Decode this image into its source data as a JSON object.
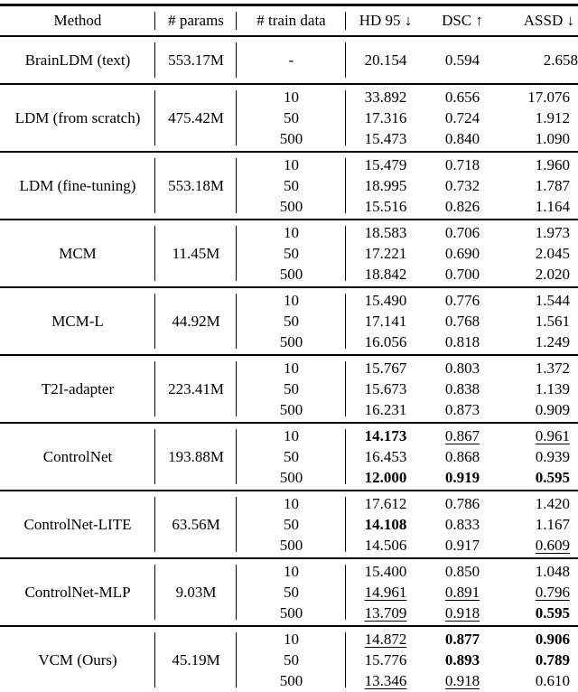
{
  "page": {
    "background": "#ffffff",
    "text_color": "#000000"
  },
  "table": {
    "headers": [
      "Method",
      "# params",
      "# train data",
      "HD 95 ↓",
      "DSC ↑",
      "ASSD ↓"
    ],
    "groups": [
      {
        "method": "BrainLDM (text)",
        "params": "553.17M",
        "rows": [
          {
            "train": "-",
            "hd95": {
              "v": "20.154",
              "s": ""
            },
            "dsc": {
              "v": "0.594",
              "s": ""
            },
            "assd": {
              "v": "2.658",
              "s": ""
            }
          }
        ]
      },
      {
        "method": "LDM (from scratch)",
        "params": "475.42M",
        "rows": [
          {
            "train": "10",
            "hd95": {
              "v": "33.892",
              "s": ""
            },
            "dsc": {
              "v": "0.656",
              "s": ""
            },
            "assd": {
              "v": "17.076",
              "s": ""
            }
          },
          {
            "train": "50",
            "hd95": {
              "v": "17.316",
              "s": ""
            },
            "dsc": {
              "v": "0.724",
              "s": ""
            },
            "assd": {
              "v": "1.912",
              "s": ""
            }
          },
          {
            "train": "500",
            "hd95": {
              "v": "15.473",
              "s": ""
            },
            "dsc": {
              "v": "0.840",
              "s": ""
            },
            "assd": {
              "v": "1.090",
              "s": ""
            }
          }
        ]
      },
      {
        "method": "LDM (fine-tuning)",
        "params": "553.18M",
        "rows": [
          {
            "train": "10",
            "hd95": {
              "v": "15.479",
              "s": ""
            },
            "dsc": {
              "v": "0.718",
              "s": ""
            },
            "assd": {
              "v": "1.960",
              "s": ""
            }
          },
          {
            "train": "50",
            "hd95": {
              "v": "18.995",
              "s": ""
            },
            "dsc": {
              "v": "0.732",
              "s": ""
            },
            "assd": {
              "v": "1.787",
              "s": ""
            }
          },
          {
            "train": "500",
            "hd95": {
              "v": "15.516",
              "s": ""
            },
            "dsc": {
              "v": "0.826",
              "s": ""
            },
            "assd": {
              "v": "1.164",
              "s": ""
            }
          }
        ]
      },
      {
        "method": "MCM",
        "params": "11.45M",
        "rows": [
          {
            "train": "10",
            "hd95": {
              "v": "18.583",
              "s": ""
            },
            "dsc": {
              "v": "0.706",
              "s": ""
            },
            "assd": {
              "v": "1.973",
              "s": ""
            }
          },
          {
            "train": "50",
            "hd95": {
              "v": "17.221",
              "s": ""
            },
            "dsc": {
              "v": "0.690",
              "s": ""
            },
            "assd": {
              "v": "2.045",
              "s": ""
            }
          },
          {
            "train": "500",
            "hd95": {
              "v": "18.842",
              "s": ""
            },
            "dsc": {
              "v": "0.700",
              "s": ""
            },
            "assd": {
              "v": "2.020",
              "s": ""
            }
          }
        ]
      },
      {
        "method": "MCM-L",
        "params": "44.92M",
        "rows": [
          {
            "train": "10",
            "hd95": {
              "v": "15.490",
              "s": ""
            },
            "dsc": {
              "v": "0.776",
              "s": ""
            },
            "assd": {
              "v": "1.544",
              "s": ""
            }
          },
          {
            "train": "50",
            "hd95": {
              "v": "17.141",
              "s": ""
            },
            "dsc": {
              "v": "0.768",
              "s": ""
            },
            "assd": {
              "v": "1.561",
              "s": ""
            }
          },
          {
            "train": "500",
            "hd95": {
              "v": "16.056",
              "s": ""
            },
            "dsc": {
              "v": "0.818",
              "s": ""
            },
            "assd": {
              "v": "1.249",
              "s": ""
            }
          }
        ]
      },
      {
        "method": "T2I-adapter",
        "params": "223.41M",
        "rows": [
          {
            "train": "10",
            "hd95": {
              "v": "15.767",
              "s": ""
            },
            "dsc": {
              "v": "0.803",
              "s": ""
            },
            "assd": {
              "v": "1.372",
              "s": ""
            }
          },
          {
            "train": "50",
            "hd95": {
              "v": "15.673",
              "s": ""
            },
            "dsc": {
              "v": "0.838",
              "s": ""
            },
            "assd": {
              "v": "1.139",
              "s": ""
            }
          },
          {
            "train": "500",
            "hd95": {
              "v": "16.231",
              "s": ""
            },
            "dsc": {
              "v": "0.873",
              "s": ""
            },
            "assd": {
              "v": "0.909",
              "s": ""
            }
          }
        ]
      },
      {
        "method": "ControlNet",
        "params": "193.88M",
        "rows": [
          {
            "train": "10",
            "hd95": {
              "v": "14.173",
              "s": "bold"
            },
            "dsc": {
              "v": "0.867",
              "s": "underline"
            },
            "assd": {
              "v": "0.961",
              "s": "underline"
            }
          },
          {
            "train": "50",
            "hd95": {
              "v": "16.453",
              "s": ""
            },
            "dsc": {
              "v": "0.868",
              "s": ""
            },
            "assd": {
              "v": "0.939",
              "s": ""
            }
          },
          {
            "train": "500",
            "hd95": {
              "v": "12.000",
              "s": "bold"
            },
            "dsc": {
              "v": "0.919",
              "s": "bold"
            },
            "assd": {
              "v": "0.595",
              "s": "bold"
            }
          }
        ]
      },
      {
        "method": "ControlNet-LITE",
        "params": "63.56M",
        "rows": [
          {
            "train": "10",
            "hd95": {
              "v": "17.612",
              "s": ""
            },
            "dsc": {
              "v": "0.786",
              "s": ""
            },
            "assd": {
              "v": "1.420",
              "s": ""
            }
          },
          {
            "train": "50",
            "hd95": {
              "v": "14.108",
              "s": "bold"
            },
            "dsc": {
              "v": "0.833",
              "s": ""
            },
            "assd": {
              "v": "1.167",
              "s": ""
            }
          },
          {
            "train": "500",
            "hd95": {
              "v": "14.506",
              "s": ""
            },
            "dsc": {
              "v": "0.917",
              "s": ""
            },
            "assd": {
              "v": "0.609",
              "s": "underline"
            }
          }
        ]
      },
      {
        "method": "ControlNet-MLP",
        "params": "9.03M",
        "rows": [
          {
            "train": "10",
            "hd95": {
              "v": "15.400",
              "s": ""
            },
            "dsc": {
              "v": "0.850",
              "s": ""
            },
            "assd": {
              "v": "1.048",
              "s": ""
            }
          },
          {
            "train": "50",
            "hd95": {
              "v": "14.961",
              "s": "underline"
            },
            "dsc": {
              "v": "0.891",
              "s": "underline"
            },
            "assd": {
              "v": "0.796",
              "s": "underline"
            }
          },
          {
            "train": "500",
            "hd95": {
              "v": "13.709",
              "s": "underline"
            },
            "dsc": {
              "v": "0.918",
              "s": "underline"
            },
            "assd": {
              "v": "0.595",
              "s": "bold"
            }
          }
        ]
      },
      {
        "method": "VCM (Ours)",
        "params": "45.19M",
        "rows": [
          {
            "train": "10",
            "hd95": {
              "v": "14.872",
              "s": "underline"
            },
            "dsc": {
              "v": "0.877",
              "s": "bold"
            },
            "assd": {
              "v": "0.906",
              "s": "bold"
            }
          },
          {
            "train": "50",
            "hd95": {
              "v": "15.776",
              "s": ""
            },
            "dsc": {
              "v": "0.893",
              "s": "bold"
            },
            "assd": {
              "v": "0.789",
              "s": "bold"
            }
          },
          {
            "train": "500",
            "hd95": {
              "v": "13.346",
              "s": "underline"
            },
            "dsc": {
              "v": "0.918",
              "s": "underline"
            },
            "assd": {
              "v": "0.610",
              "s": ""
            }
          }
        ]
      }
    ]
  }
}
